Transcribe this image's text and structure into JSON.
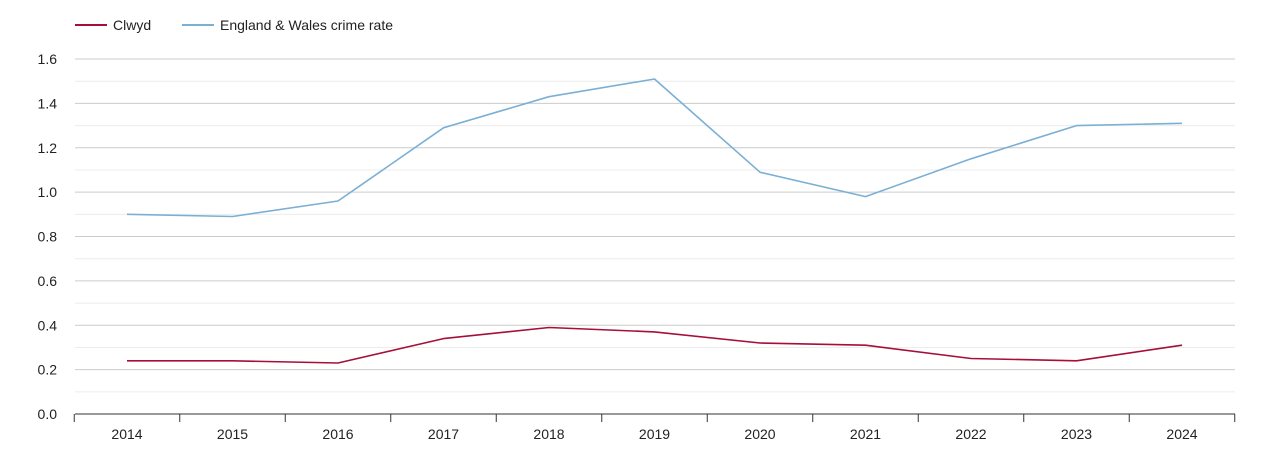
{
  "chart_data": {
    "type": "line",
    "title": "",
    "xlabel": "",
    "ylabel": "",
    "x": [
      "2014",
      "2015",
      "2016",
      "2017",
      "2018",
      "2019",
      "2020",
      "2021",
      "2022",
      "2023",
      "2024"
    ],
    "ylim": [
      0,
      1.6
    ],
    "yticks": [
      "0.0",
      "0.2",
      "0.4",
      "0.6",
      "0.8",
      "1.0",
      "1.2",
      "1.4",
      "1.6"
    ],
    "grid": true,
    "legend_position": "top-left",
    "series": [
      {
        "name": "Clwyd",
        "color": "#a50f3a",
        "values": [
          0.24,
          0.24,
          0.23,
          0.34,
          0.39,
          0.37,
          0.32,
          0.31,
          0.25,
          0.24,
          0.31
        ]
      },
      {
        "name": "England & Wales crime rate",
        "color": "#7bafd4",
        "values": [
          0.9,
          0.89,
          0.96,
          1.29,
          1.43,
          1.51,
          1.09,
          0.98,
          1.15,
          1.3,
          1.31
        ]
      }
    ]
  }
}
